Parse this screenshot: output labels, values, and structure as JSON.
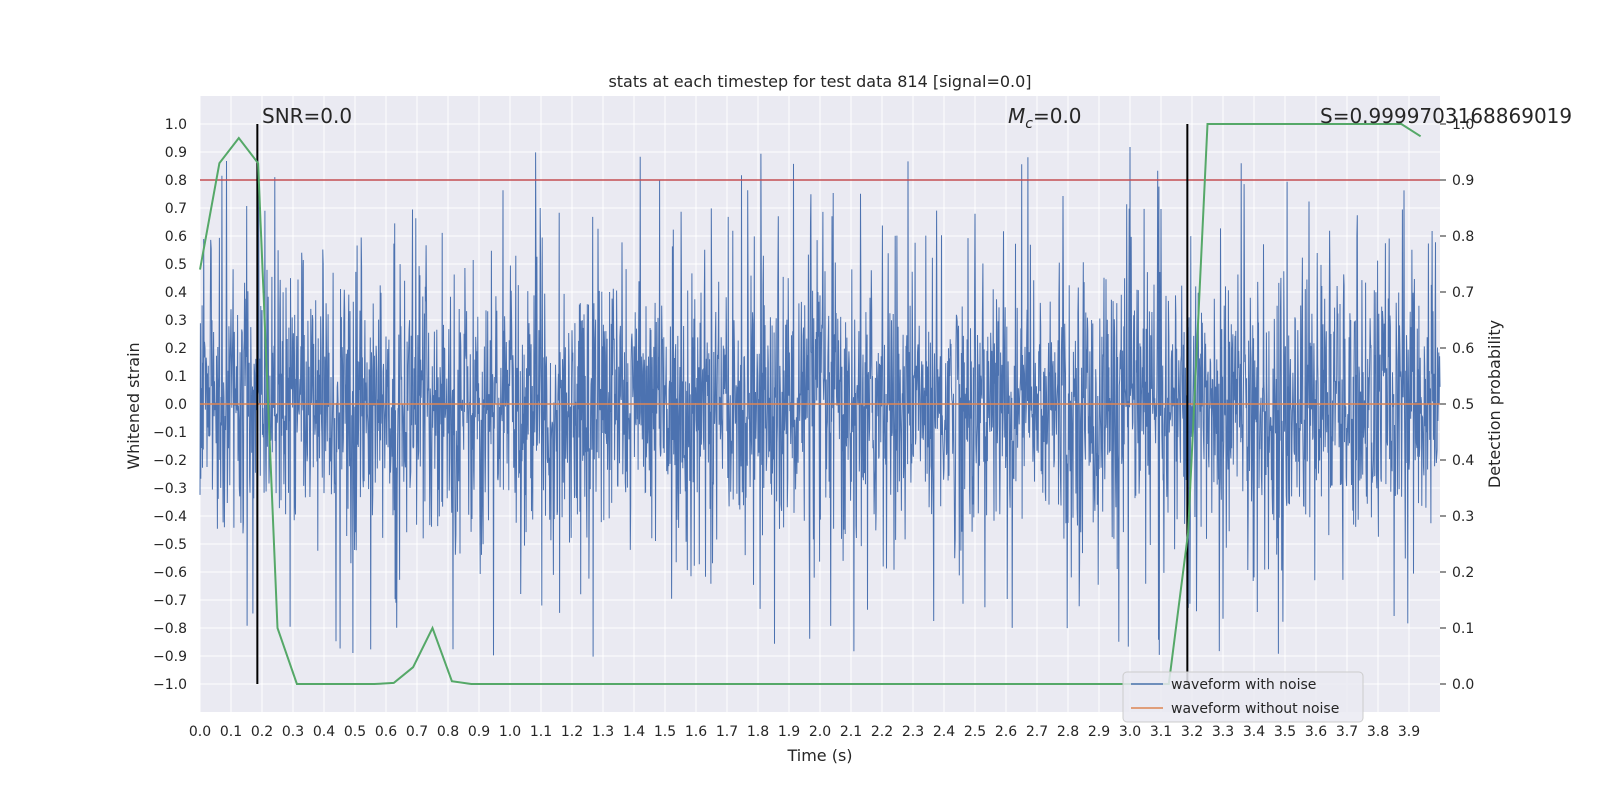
{
  "chart_data": {
    "type": "line",
    "title": "stats at each timestep for test data 814 [signal=0.0]",
    "xlabel": "Time (s)",
    "ylabel_left": "Whitened strain",
    "ylabel_right": "Detection probability",
    "xlim": [
      0.0,
      4.0
    ],
    "ylim_left": [
      -1.1,
      1.1
    ],
    "ylim_right": [
      -0.05,
      1.05
    ],
    "x_ticks": [
      "0.0",
      "0.1",
      "0.2",
      "0.3",
      "0.4",
      "0.5",
      "0.6",
      "0.7",
      "0.8",
      "0.9",
      "1.0",
      "1.1",
      "1.2",
      "1.3",
      "1.4",
      "1.5",
      "1.6",
      "1.7",
      "1.8",
      "1.9",
      "2.0",
      "2.1",
      "2.2",
      "2.3",
      "2.4",
      "2.5",
      "2.6",
      "2.7",
      "2.8",
      "2.9",
      "3.0",
      "3.1",
      "3.2",
      "3.3",
      "3.4",
      "3.5",
      "3.6",
      "3.7",
      "3.8",
      "3.9"
    ],
    "y_ticks_left": [
      "1.0",
      "0.9",
      "0.8",
      "0.7",
      "0.6",
      "0.5",
      "0.4",
      "0.3",
      "0.2",
      "0.1",
      "0.0",
      "−0.1",
      "−0.2",
      "−0.3",
      "−0.4",
      "−0.5",
      "−0.6",
      "−0.7",
      "−0.8",
      "−0.9",
      "−1.0"
    ],
    "y_ticks_right": [
      "1.0",
      "0.9",
      "0.8",
      "0.7",
      "0.6",
      "0.5",
      "0.4",
      "0.3",
      "0.2",
      "0.1",
      "0.0"
    ],
    "threshold_line": {
      "y": 0.8,
      "color": "#c44e52"
    },
    "vertical_lines": [
      0.185,
      3.185
    ],
    "annotations": {
      "snr": "SNR=0.0",
      "mc_symbol": "M",
      "mc_sub": "c",
      "mc_value": "=0.0",
      "s": "S=0.9999703168869019"
    },
    "series": [
      {
        "name": "waveform with noise",
        "color": "#4c72b0",
        "kind": "noise",
        "peak_min": -0.95,
        "peak_max": 1.0,
        "approx_points": 3000
      },
      {
        "name": "waveform without noise",
        "color": "#dd8452",
        "kind": "flat",
        "value": 0.0
      },
      {
        "name": "detection probability",
        "color": "#55a868",
        "axis": "right",
        "x": [
          0.0,
          0.0625,
          0.125,
          0.1875,
          0.25,
          0.3125,
          0.375,
          0.4375,
          0.5,
          0.5625,
          0.625,
          0.6875,
          0.75,
          0.8125,
          0.875,
          0.9375,
          1.0,
          1.5,
          2.0,
          2.5,
          3.0,
          3.125,
          3.1875,
          3.25,
          3.3125,
          3.5,
          3.75,
          3.875,
          3.9375
        ],
        "values": [
          0.74,
          0.93,
          0.975,
          0.93,
          0.1,
          0.0,
          0.0,
          0.0,
          0.0,
          0.0,
          0.002,
          0.03,
          0.1,
          0.005,
          0.0,
          0.0,
          0.0,
          0.0,
          0.0,
          0.0,
          0.0,
          0.0,
          0.27,
          1.0,
          1.0,
          1.0,
          1.0,
          1.0,
          0.978
        ]
      }
    ],
    "legend": {
      "placement": "lower-right",
      "entries": [
        {
          "label": "waveform with noise",
          "color": "#4c72b0"
        },
        {
          "label": "waveform without noise",
          "color": "#dd8452"
        }
      ]
    },
    "colors": {
      "background": "#eaeaf2",
      "grid": "#ffffff",
      "vline": "#000000"
    }
  }
}
